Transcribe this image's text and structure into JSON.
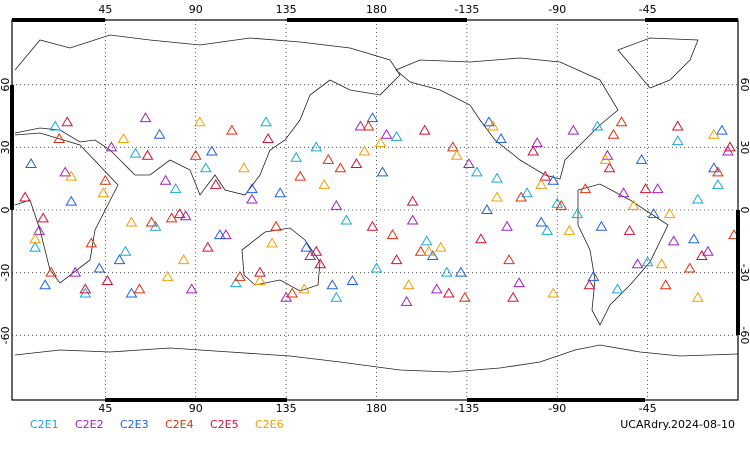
{
  "chart_data": {
    "type": "scatter",
    "annotation": "UCARdry.2024-08-10",
    "xlim": [
      0,
      360
    ],
    "ylim": [
      -90,
      90
    ],
    "xticks": [
      45,
      90,
      135,
      180,
      {
        "value": 225,
        "label": "-135"
      },
      {
        "value": 270,
        "label": "-90"
      },
      {
        "value": 315,
        "label": "-45"
      }
    ],
    "yticks": [
      -60,
      -30,
      0,
      30,
      60
    ],
    "grid": true,
    "series": [
      {
        "name": "C2E1",
        "color": "#18a8d8",
        "x": [
          20,
          55,
          80,
          110,
          140,
          165,
          190,
          215,
          240,
          265,
          290,
          315,
          340,
          35,
          95,
          150,
          205,
          255,
          300,
          350,
          70,
          125,
          180,
          230,
          280,
          330,
          10,
          60,
          160,
          270
        ],
        "values": [
          40,
          -20,
          10,
          -35,
          25,
          -5,
          35,
          -30,
          15,
          -10,
          40,
          -25,
          5,
          -40,
          20,
          30,
          -15,
          8,
          -38,
          12,
          -8,
          42,
          -28,
          18,
          -2,
          33,
          -18,
          27,
          -42,
          3
        ]
      },
      {
        "name": "C2E2",
        "color": "#a020c0",
        "x": [
          12,
          48,
          88,
          118,
          147,
          172,
          198,
          226,
          251,
          278,
          303,
          328,
          355,
          30,
          75,
          135,
          185,
          245,
          295,
          345,
          65,
          105,
          160,
          210,
          260,
          310,
          25,
          85,
          195,
          320
        ],
        "values": [
          -10,
          30,
          -38,
          5,
          -22,
          40,
          -5,
          22,
          -35,
          38,
          8,
          -15,
          28,
          -30,
          14,
          -42,
          36,
          -8,
          26,
          -20,
          44,
          -12,
          2,
          -38,
          32,
          -26,
          18,
          -3,
          -44,
          10
        ]
      },
      {
        "name": "C2E3",
        "color": "#2060e0",
        "x": [
          8,
          42,
          72,
          102,
          132,
          158,
          183,
          208,
          236,
          262,
          288,
          312,
          338,
          28,
          58,
          98,
          145,
          178,
          222,
          268,
          318,
          352,
          52,
          118,
          168,
          242,
          292,
          348,
          15,
          235
        ],
        "values": [
          22,
          -28,
          36,
          -12,
          8,
          -36,
          18,
          -22,
          42,
          -6,
          -32,
          24,
          -14,
          4,
          -40,
          28,
          -18,
          44,
          -30,
          14,
          -2,
          38,
          -24,
          10,
          -34,
          34,
          -8,
          20,
          -36,
          0
        ]
      },
      {
        "name": "C2E4",
        "color": "#e03010",
        "x": [
          18,
          45,
          78,
          108,
          138,
          162,
          188,
          218,
          246,
          272,
          298,
          324,
          350,
          38,
          90,
          130,
          176,
          224,
          284,
          336,
          22,
          68,
          112,
          156,
          202,
          252,
          302,
          358,
          62,
          142
        ],
        "values": [
          -30,
          14,
          -4,
          38,
          -40,
          20,
          -12,
          30,
          -24,
          2,
          36,
          -36,
          18,
          -16,
          26,
          -8,
          40,
          -42,
          10,
          -28,
          34,
          -6,
          -32,
          24,
          -20,
          6,
          42,
          -12,
          -38,
          16
        ]
      },
      {
        "name": "C2E5",
        "color": "#d01038",
        "x": [
          5,
          35,
          66,
          96,
          126,
          152,
          178,
          204,
          232,
          258,
          286,
          314,
          342,
          26,
          82,
          122,
          170,
          216,
          264,
          306,
          356,
          46,
          100,
          150,
          198,
          248,
          296,
          330,
          14,
          190
        ],
        "values": [
          6,
          -38,
          26,
          -18,
          34,
          -26,
          -8,
          38,
          -14,
          28,
          -36,
          10,
          -22,
          42,
          -2,
          -30,
          22,
          -40,
          16,
          -10,
          30,
          -34,
          12,
          -20,
          4,
          -42,
          20,
          40,
          -4,
          -24
        ]
      },
      {
        "name": "C2E6",
        "color": "#f0a000",
        "x": [
          28,
          58,
          92,
          122,
          154,
          182,
          212,
          240,
          268,
          294,
          322,
          348,
          10,
          44,
          76,
          114,
          144,
          174,
          206,
          238,
          276,
          308,
          340,
          54,
          128,
          196,
          262,
          326,
          84,
          220
        ],
        "values": [
          16,
          -6,
          42,
          -34,
          12,
          32,
          -18,
          6,
          -40,
          24,
          -26,
          36,
          -14,
          8,
          -32,
          20,
          -38,
          28,
          -20,
          40,
          -10,
          2,
          -42,
          34,
          -16,
          -36,
          12,
          -2,
          -24,
          26
        ]
      }
    ]
  }
}
